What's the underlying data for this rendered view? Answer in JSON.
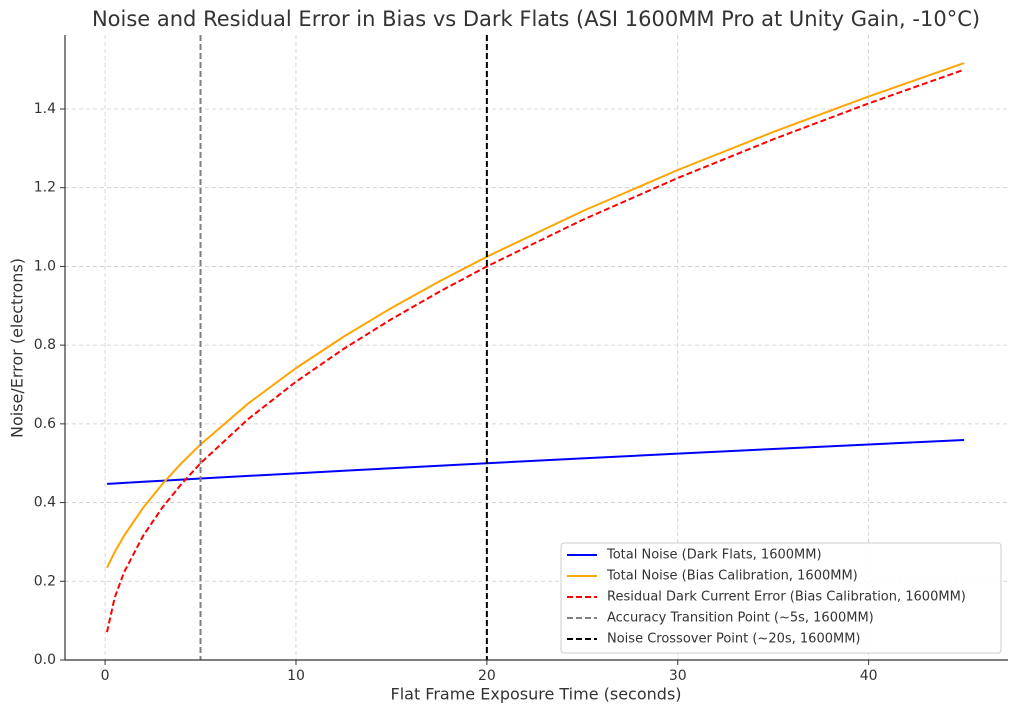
{
  "chart_data": {
    "type": "line",
    "title": "Noise and Residual Error in Bias vs Dark Flats (ASI 1600MM Pro at Unity Gain, -10°C)",
    "x_label": "Flat Frame Exposure Time (seconds)",
    "y_label": "Noise/Error (electrons)",
    "x": [
      0.1,
      0.5,
      1,
      2,
      3,
      4,
      5,
      7.5,
      10,
      12.5,
      15,
      17.5,
      20,
      25,
      30,
      35,
      40,
      45
    ],
    "series": [
      {
        "name": "Total Noise (Dark Flats, 1600MM)",
        "color": "#0000ff",
        "dashed": false,
        "values": [
          0.4475,
          0.4486,
          0.45,
          0.4528,
          0.4555,
          0.4583,
          0.461,
          0.4677,
          0.4743,
          0.4809,
          0.4873,
          0.4937,
          0.5,
          0.5123,
          0.5244,
          0.5362,
          0.5477,
          0.559
        ]
      },
      {
        "name": "Total Noise (Bias Calibration, 1600MM)",
        "color": "#ffa500",
        "dashed": false,
        "values": [
          0.2345,
          0.2739,
          0.3162,
          0.3873,
          0.4472,
          0.5,
          0.5477,
          0.6519,
          0.7416,
          0.8216,
          0.8944,
          0.9618,
          1.0247,
          1.1402,
          1.245,
          1.3416,
          1.4318,
          1.5166
        ]
      },
      {
        "name": "Residual Dark Current Error (Bias Calibration, 1600MM)",
        "color": "#ff0000",
        "dashed": true,
        "values": [
          0.0707,
          0.1581,
          0.2236,
          0.3162,
          0.3873,
          0.4472,
          0.5,
          0.6124,
          0.7071,
          0.7906,
          0.866,
          0.9354,
          1.0,
          1.118,
          1.2247,
          1.3229,
          1.4142,
          1.5
        ]
      }
    ],
    "vertical_lines": [
      {
        "name": "Accuracy Transition Point (~5s, 1600MM)",
        "color": "#808080",
        "x": 5
      },
      {
        "name": "Noise Crossover Point (~20s, 1600MM)",
        "color": "#000000",
        "x": 20
      }
    ],
    "xlim": [
      -2.1,
      47.3
    ],
    "ylim": [
      0,
      1.588
    ],
    "xticks": [
      0,
      10,
      20,
      30,
      40
    ],
    "yticks": [
      {
        "value": 0,
        "label": "0.0"
      },
      0.2,
      0.4,
      0.6,
      0.8,
      {
        "value": 1,
        "label": "1.0"
      },
      1.2,
      1.4
    ],
    "grid": true,
    "legend": "lower right"
  }
}
